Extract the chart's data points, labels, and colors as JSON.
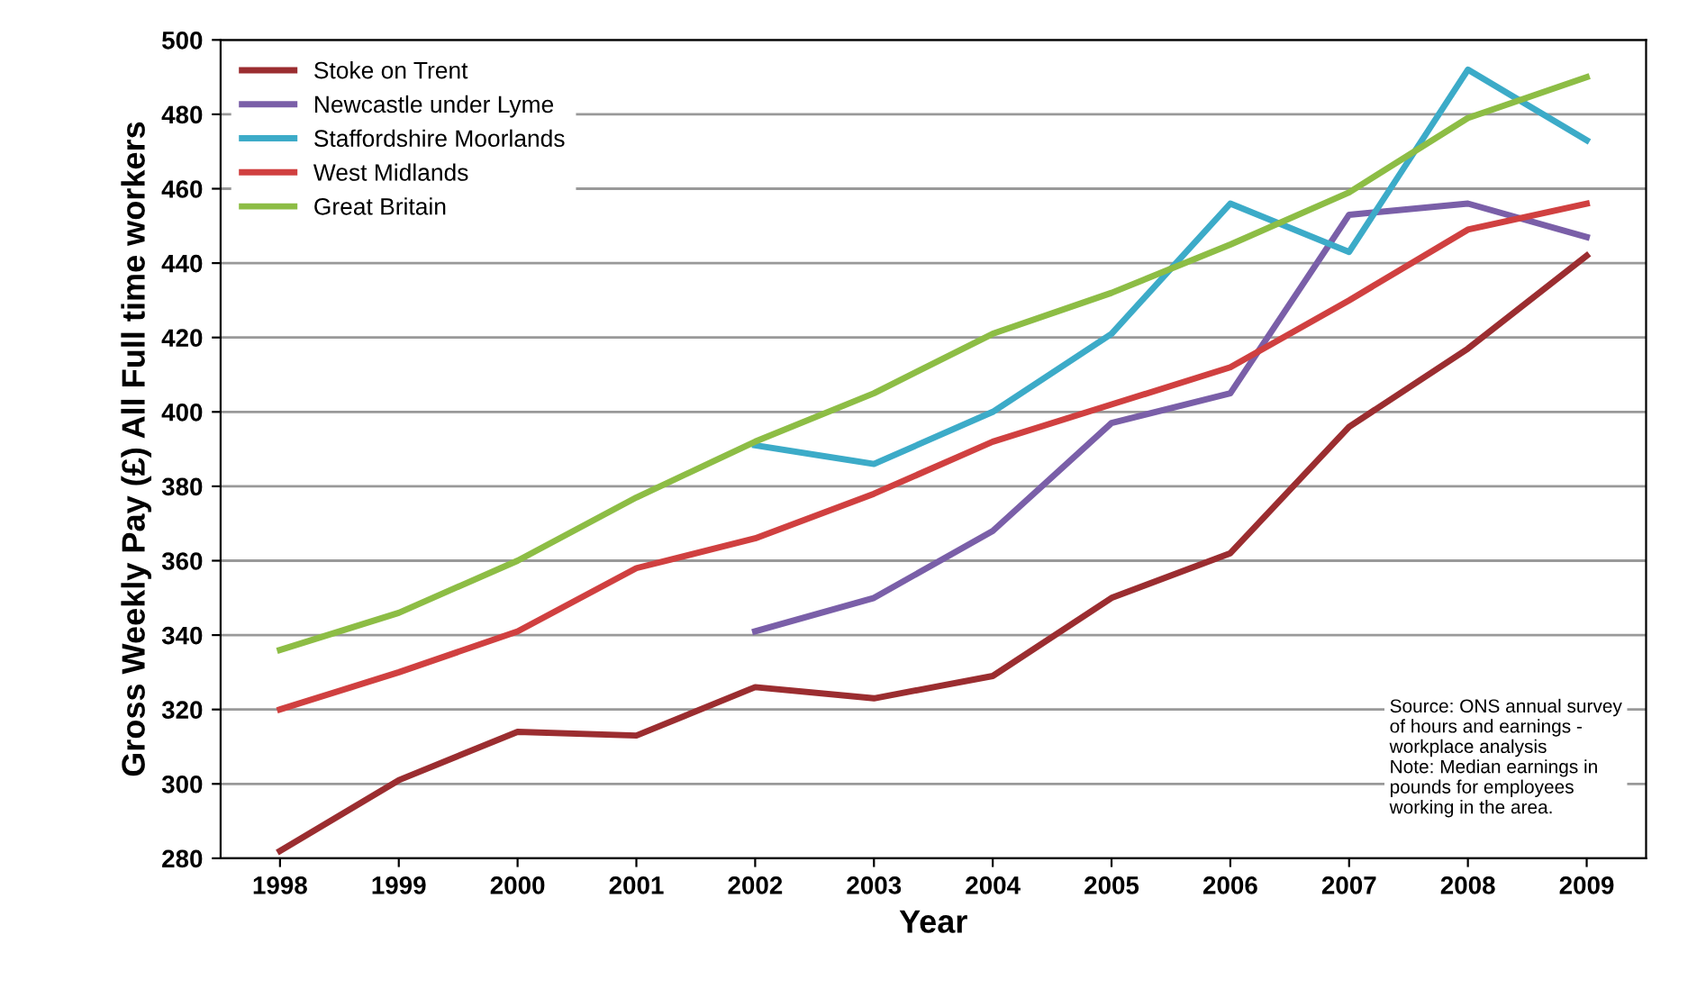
{
  "chart_data": {
    "type": "line",
    "xlabel": "Year",
    "ylabel": "Gross Weekly Pay (£) All Full time workers",
    "categories": [
      "1998",
      "1999",
      "2000",
      "2001",
      "2002",
      "2003",
      "2004",
      "2005",
      "2006",
      "2007",
      "2008",
      "2009"
    ],
    "series": [
      {
        "name": "Stoke on Trent",
        "color": "#9b2d30",
        "values": [
          282,
          301,
          314,
          313,
          326,
          323,
          329,
          350,
          362,
          396,
          417,
          442
        ]
      },
      {
        "name": "Newcastle under Lyme",
        "color": "#7a5fa8",
        "values": [
          null,
          null,
          null,
          null,
          341,
          350,
          368,
          397,
          405,
          453,
          456,
          447
        ]
      },
      {
        "name": "Staffordshire Moorlands",
        "color": "#3cabc8",
        "values": [
          null,
          null,
          null,
          null,
          391,
          386,
          400,
          421,
          456,
          443,
          492,
          473
        ]
      },
      {
        "name": "West Midlands",
        "color": "#d04040",
        "values": [
          320,
          330,
          341,
          358,
          366,
          378,
          392,
          402,
          412,
          430,
          449,
          456
        ]
      },
      {
        "name": "Great Britain",
        "color": "#8dbd45",
        "values": [
          336,
          346,
          360,
          377,
          392,
          405,
          421,
          432,
          445,
          459,
          479,
          490
        ]
      }
    ],
    "ylim": [
      280,
      500
    ],
    "yticks": [
      280,
      300,
      320,
      340,
      360,
      380,
      400,
      420,
      440,
      460,
      480,
      500
    ],
    "grid": "y",
    "legend": "top left",
    "marker": "none",
    "line_style": "solid",
    "annotations": [
      "Source: ONS annual survey\nof hours and earnings -\nworkplace analysis\nNote: Median earnings in\npounds for employees\nworking in the area."
    ]
  }
}
